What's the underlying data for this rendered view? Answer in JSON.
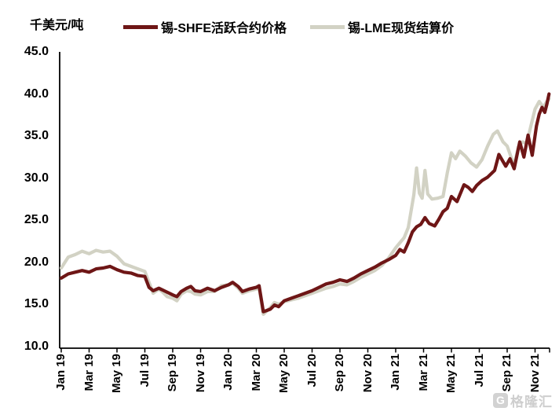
{
  "watermark": {
    "logo_text": "G",
    "text": "格隆汇"
  },
  "chart": {
    "unit_label": "千美元/吨",
    "legend": [
      {
        "label": "锡-SHFE活跃合约价格",
        "color": "#6E1616"
      },
      {
        "label": "锡-LME现货结算价",
        "color": "#D2D2C4"
      }
    ],
    "chart_data": {
      "type": "line",
      "title": "",
      "ylabel": "千美元/吨",
      "ylim": [
        10,
        45
      ],
      "ytick_step": 5,
      "grid": false,
      "legend_position": "top",
      "yticks": [
        "45.0",
        "40.0",
        "35.0",
        "30.0",
        "25.0",
        "20.0",
        "15.0",
        "10.0"
      ],
      "xticks": [
        "Jan 19",
        "Mar 19",
        "May 19",
        "Jul 19",
        "Sep 19",
        "Nov 19",
        "Jan 20",
        "Mar 20",
        "May 20",
        "Jul 20",
        "Sep 20",
        "Nov 20",
        "Jan 21",
        "Mar 21",
        "May 21",
        "Jul 21",
        "Sep 21",
        "Nov 21"
      ],
      "x_unit": "months since Jan 2019, x-ticks every 2 months",
      "series": [
        {
          "name": "锡-SHFE活跃合约价格",
          "color": "#6E1616",
          "points": [
            [
              0,
              18.1
            ],
            [
              0.5,
              18.6
            ],
            [
              1,
              18.8
            ],
            [
              1.5,
              19.0
            ],
            [
              2,
              18.8
            ],
            [
              2.5,
              19.2
            ],
            [
              3,
              19.3
            ],
            [
              3.5,
              19.5
            ],
            [
              4,
              19.1
            ],
            [
              4.5,
              18.8
            ],
            [
              5,
              18.7
            ],
            [
              5.5,
              18.4
            ],
            [
              6,
              18.3
            ],
            [
              6.3,
              17.0
            ],
            [
              6.6,
              16.6
            ],
            [
              7,
              16.9
            ],
            [
              7.5,
              16.5
            ],
            [
              8,
              16.1
            ],
            [
              8.3,
              15.9
            ],
            [
              8.6,
              16.5
            ],
            [
              9,
              16.9
            ],
            [
              9.3,
              17.1
            ],
            [
              9.6,
              16.6
            ],
            [
              10,
              16.5
            ],
            [
              10.5,
              16.9
            ],
            [
              11,
              16.6
            ],
            [
              11.5,
              17.0
            ],
            [
              12,
              17.3
            ],
            [
              12.3,
              17.6
            ],
            [
              12.7,
              17.1
            ],
            [
              13,
              16.5
            ],
            [
              13.5,
              16.8
            ],
            [
              14,
              17.0
            ],
            [
              14.2,
              17.2
            ],
            [
              14.5,
              14.1
            ],
            [
              15,
              14.4
            ],
            [
              15.3,
              14.9
            ],
            [
              15.6,
              14.7
            ],
            [
              16,
              15.4
            ],
            [
              16.5,
              15.7
            ],
            [
              17,
              16.0
            ],
            [
              17.5,
              16.3
            ],
            [
              18,
              16.6
            ],
            [
              18.5,
              17.0
            ],
            [
              19,
              17.4
            ],
            [
              19.5,
              17.6
            ],
            [
              20,
              17.9
            ],
            [
              20.5,
              17.7
            ],
            [
              21,
              18.1
            ],
            [
              21.5,
              18.6
            ],
            [
              22,
              19.0
            ],
            [
              22.5,
              19.4
            ],
            [
              23,
              19.9
            ],
            [
              23.5,
              20.3
            ],
            [
              24,
              20.8
            ],
            [
              24.3,
              21.5
            ],
            [
              24.6,
              21.2
            ],
            [
              24.9,
              22.3
            ],
            [
              25.2,
              23.6
            ],
            [
              25.5,
              24.2
            ],
            [
              25.8,
              24.5
            ],
            [
              26.1,
              25.3
            ],
            [
              26.4,
              24.6
            ],
            [
              26.8,
              24.3
            ],
            [
              27.1,
              25.1
            ],
            [
              27.4,
              26.0
            ],
            [
              27.7,
              26.4
            ],
            [
              28,
              27.8
            ],
            [
              28.4,
              27.2
            ],
            [
              28.9,
              29.2
            ],
            [
              29.2,
              28.9
            ],
            [
              29.5,
              28.4
            ],
            [
              29.8,
              29.1
            ],
            [
              30.2,
              29.7
            ],
            [
              30.6,
              30.1
            ],
            [
              31.1,
              30.9
            ],
            [
              31.4,
              32.8
            ],
            [
              31.9,
              31.4
            ],
            [
              32.2,
              32.3
            ],
            [
              32.5,
              31.1
            ],
            [
              32.9,
              34.3
            ],
            [
              33.2,
              32.5
            ],
            [
              33.5,
              35.1
            ],
            [
              33.8,
              32.7
            ],
            [
              34.1,
              36.2
            ],
            [
              34.3,
              37.6
            ],
            [
              34.5,
              38.4
            ],
            [
              34.7,
              37.8
            ],
            [
              34.85,
              38.8
            ],
            [
              35,
              40.0
            ]
          ]
        },
        {
          "name": "锡-LME现货结算价",
          "color": "#D2D2C4",
          "points": [
            [
              0,
              19.3
            ],
            [
              0.5,
              20.6
            ],
            [
              1,
              20.9
            ],
            [
              1.5,
              21.3
            ],
            [
              2,
              21.0
            ],
            [
              2.5,
              21.4
            ],
            [
              3,
              21.2
            ],
            [
              3.5,
              21.3
            ],
            [
              4,
              20.7
            ],
            [
              4.5,
              19.8
            ],
            [
              5,
              19.5
            ],
            [
              5.5,
              19.2
            ],
            [
              6,
              18.9
            ],
            [
              6.3,
              17.6
            ],
            [
              6.6,
              16.3
            ],
            [
              7,
              16.8
            ],
            [
              7.3,
              16.4
            ],
            [
              7.6,
              15.9
            ],
            [
              8,
              15.7
            ],
            [
              8.3,
              15.4
            ],
            [
              8.6,
              16.2
            ],
            [
              9,
              16.6
            ],
            [
              9.3,
              16.5
            ],
            [
              9.6,
              16.2
            ],
            [
              10,
              16.1
            ],
            [
              10.5,
              16.5
            ],
            [
              11,
              16.5
            ],
            [
              11.5,
              17.2
            ],
            [
              12,
              17.3
            ],
            [
              12.3,
              17.5
            ],
            [
              12.7,
              16.9
            ],
            [
              13,
              16.3
            ],
            [
              13.5,
              16.6
            ],
            [
              14,
              16.8
            ],
            [
              14.2,
              16.9
            ],
            [
              14.5,
              13.8
            ],
            [
              15,
              14.6
            ],
            [
              15.3,
              15.2
            ],
            [
              15.6,
              15.0
            ],
            [
              16,
              15.3
            ],
            [
              16.5,
              15.5
            ],
            [
              17,
              15.7
            ],
            [
              17.5,
              16.0
            ],
            [
              18,
              16.3
            ],
            [
              18.5,
              16.6
            ],
            [
              19,
              16.9
            ],
            [
              19.5,
              17.1
            ],
            [
              20,
              17.4
            ],
            [
              20.5,
              17.3
            ],
            [
              21,
              17.7
            ],
            [
              21.5,
              18.2
            ],
            [
              22,
              18.6
            ],
            [
              22.5,
              19.0
            ],
            [
              23,
              19.6
            ],
            [
              23.5,
              20.5
            ],
            [
              24,
              21.7
            ],
            [
              24.3,
              22.3
            ],
            [
              24.6,
              22.9
            ],
            [
              24.9,
              24.1
            ],
            [
              25.3,
              28.0
            ],
            [
              25.5,
              31.2
            ],
            [
              25.7,
              28.2
            ],
            [
              25.9,
              27.6
            ],
            [
              26.1,
              30.9
            ],
            [
              26.3,
              28.1
            ],
            [
              26.6,
              27.5
            ],
            [
              27,
              27.6
            ],
            [
              27.4,
              27.8
            ],
            [
              27.7,
              30.6
            ],
            [
              28,
              33.0
            ],
            [
              28.3,
              32.3
            ],
            [
              28.6,
              33.2
            ],
            [
              29,
              32.6
            ],
            [
              29.4,
              31.8
            ],
            [
              29.8,
              31.3
            ],
            [
              30.2,
              32.2
            ],
            [
              30.6,
              33.8
            ],
            [
              31,
              35.2
            ],
            [
              31.3,
              35.6
            ],
            [
              31.7,
              34.3
            ],
            [
              32,
              33.8
            ],
            [
              32.3,
              32.4
            ],
            [
              32.5,
              31.5
            ],
            [
              32.8,
              33.7
            ],
            [
              33.1,
              34.3
            ],
            [
              33.4,
              34.1
            ],
            [
              33.7,
              36.2
            ],
            [
              34,
              38.2
            ],
            [
              34.3,
              39.1
            ],
            [
              34.6,
              38.4
            ],
            [
              34.8,
              39.0
            ],
            [
              35,
              39.4
            ]
          ]
        }
      ]
    }
  }
}
